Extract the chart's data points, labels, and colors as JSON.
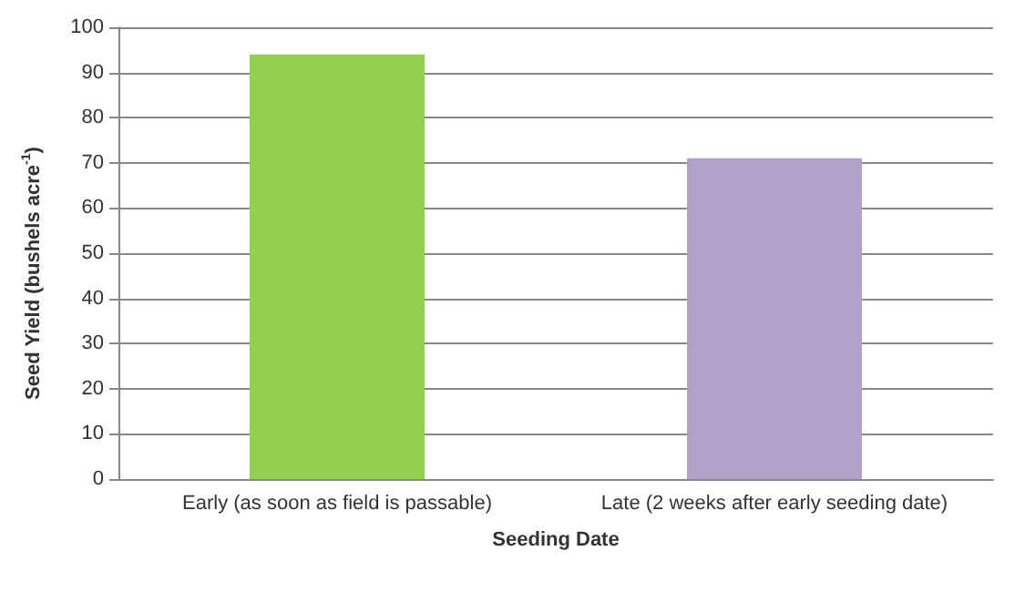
{
  "chart_data": {
    "type": "bar",
    "xlabel": "Seeding Date",
    "ylabel": "Seed Yield (bushels acre$^{-1}$)",
    "categories": [
      "Early (as soon as field is passable)",
      "Late (2 weeks after early seeding date)"
    ],
    "values": [
      94,
      71
    ],
    "colors": [
      "#92d050",
      "#b1a0c7"
    ],
    "ylim": [
      0,
      100
    ],
    "yticks": [
      0,
      10,
      20,
      30,
      40,
      50,
      60,
      70,
      80,
      90,
      100
    ],
    "grid": "y"
  }
}
